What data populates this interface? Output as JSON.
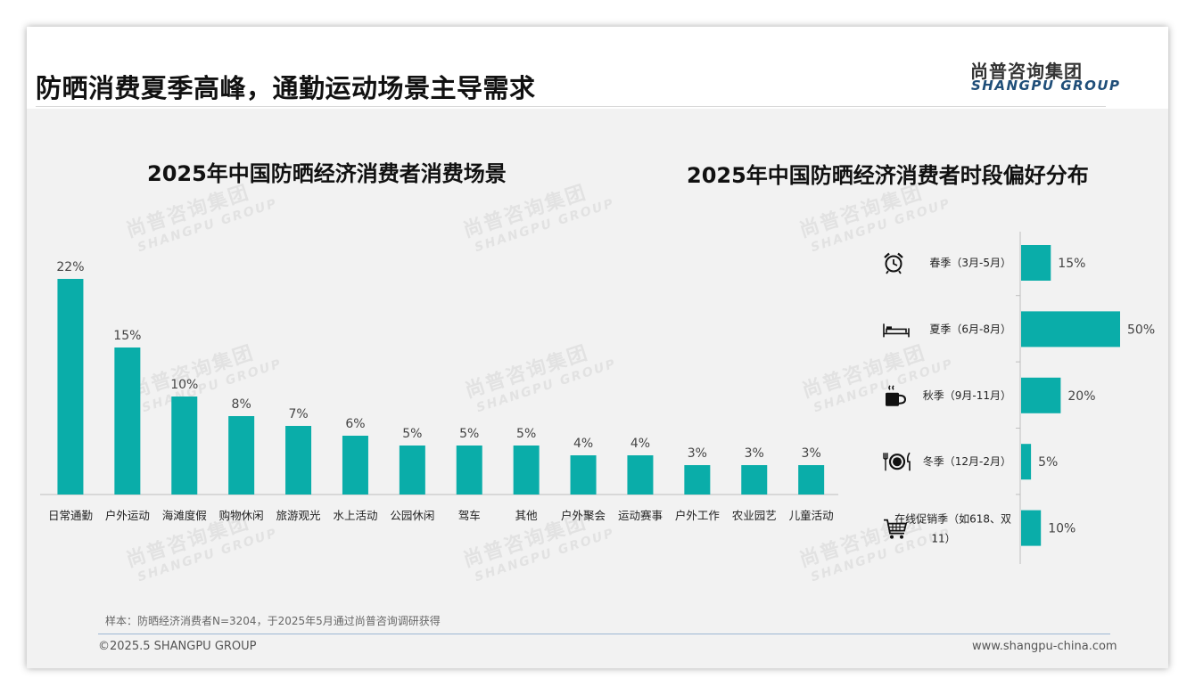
{
  "header": {
    "title": "防晒消费夏季高峰，通勤运动场景主导需求",
    "logo_cn": "尚普咨询集团",
    "logo_en": "SHANGPU GROUP"
  },
  "watermark": {
    "cn": "尚普咨询集团",
    "en": "SHANGPU GROUP"
  },
  "chart_data": [
    {
      "type": "bar",
      "title": "2025年中国防晒经济消费者消费场景",
      "categories": [
        "日常通勤",
        "户外运动",
        "海滩度假",
        "购物休闲",
        "旅游观光",
        "水上活动",
        "公园休闲",
        "驾车",
        "其他",
        "户外聚会",
        "运动赛事",
        "户外工作",
        "农业园艺",
        "儿童活动"
      ],
      "values": [
        22,
        15,
        10,
        8,
        7,
        6,
        5,
        5,
        5,
        4,
        4,
        3,
        3,
        3
      ],
      "unit": "%",
      "ylim": [
        0,
        22
      ],
      "color": "#0aada9",
      "grid": false,
      "legend": "none"
    },
    {
      "type": "bar",
      "orientation": "horizontal",
      "title": "2025年中国防晒经济消费者时段偏好分布",
      "categories": [
        "春季（3月-5月）",
        "夏季（6月-8月）",
        "秋季（9月-11月）",
        "冬季（12月-2月）",
        "在线促销季（如618、双11）"
      ],
      "category_lines": [
        [
          "春季（3月-5月）"
        ],
        [
          "夏季（6月-8月）"
        ],
        [
          "秋季（9月-11月）"
        ],
        [
          "冬季（12月-2月）"
        ],
        [
          "在线促销季（如618、双",
          "11）"
        ]
      ],
      "icons": [
        "alarm-clock-icon",
        "bed-icon",
        "coffee-cup-icon",
        "plate-cutlery-icon",
        "shopping-cart-icon"
      ],
      "values": [
        15,
        50,
        20,
        5,
        10
      ],
      "unit": "%",
      "xlim": [
        0,
        50
      ],
      "color": "#0aada9",
      "grid": false,
      "legend": "none"
    }
  ],
  "footer": {
    "note": "样本：防晒经济消费者N=3204，于2025年5月通过尚普咨询调研获得",
    "copyright": "©2025.5 SHANGPU GROUP",
    "website": "www.shangpu-china.com"
  }
}
